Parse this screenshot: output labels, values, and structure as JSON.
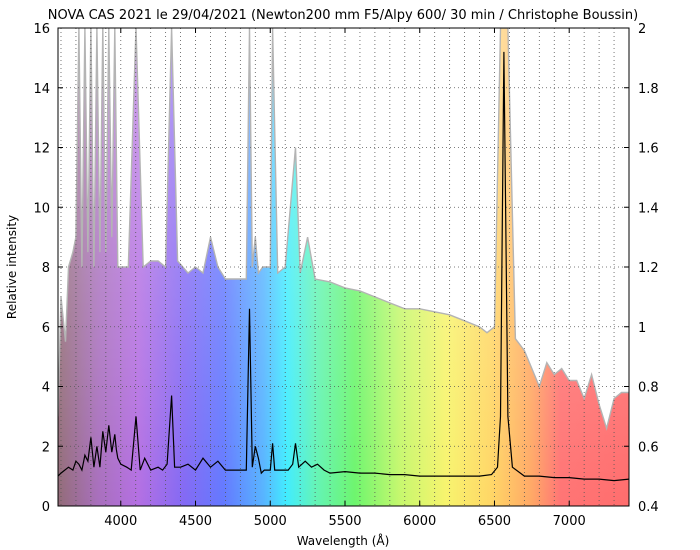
{
  "chart_data": {
    "type": "line",
    "title": "NOVA CAS 2021 le 29/04/2021 (Newton200 mm F5/Alpy 600/ 30 min / Christophe Boussin)",
    "xlabel": "Wavelength (Å)",
    "ylabel": "Relative intensity",
    "xlim": [
      3580,
      7400
    ],
    "ylim": [
      0,
      16
    ],
    "y2lim": [
      0.4,
      2.0
    ],
    "x_ticks": [
      4000,
      4500,
      5000,
      5500,
      6000,
      6500,
      7000
    ],
    "y_ticks": [
      0,
      2,
      4,
      6,
      8,
      10,
      12,
      14,
      16
    ],
    "y2_ticks": [
      0.4,
      0.6,
      0.8,
      1,
      1.2,
      1.4,
      1.6,
      1.8,
      2
    ],
    "grid": true,
    "background": "visible spectrum rainbow",
    "series": [
      {
        "color": "#000000",
        "axis": "left",
        "style": "line",
        "x": [
          3580,
          3600,
          3650,
          3680,
          3700,
          3720,
          3740,
          3760,
          3780,
          3800,
          3820,
          3840,
          3860,
          3880,
          3900,
          3920,
          3940,
          3960,
          3970,
          3980,
          4000,
          4040,
          4070,
          4102,
          4130,
          4160,
          4200,
          4250,
          4280,
          4310,
          4340,
          4360,
          4400,
          4450,
          4500,
          4550,
          4600,
          4650,
          4700,
          4750,
          4800,
          4840,
          4861,
          4880,
          4900,
          4921,
          4940,
          4960,
          5000,
          5016,
          5030,
          5080,
          5120,
          5150,
          5169,
          5190,
          5234,
          5276,
          5316,
          5360,
          5400,
          5500,
          5600,
          5700,
          5800,
          5900,
          6000,
          6100,
          6200,
          6300,
          6400,
          6480,
          6520,
          6540,
          6563,
          6590,
          6620,
          6700,
          6800,
          6900,
          7000,
          7100,
          7200,
          7300,
          7400
        ],
        "y": [
          1.0,
          1.1,
          1.3,
          1.2,
          1.5,
          1.4,
          1.2,
          1.7,
          1.5,
          2.3,
          1.3,
          2.0,
          1.3,
          2.5,
          1.8,
          2.7,
          1.8,
          2.4,
          1.9,
          1.6,
          1.4,
          1.3,
          1.2,
          3.0,
          1.2,
          1.6,
          1.2,
          1.3,
          1.2,
          1.4,
          3.7,
          1.3,
          1.3,
          1.4,
          1.2,
          1.6,
          1.3,
          1.5,
          1.2,
          1.2,
          1.2,
          1.2,
          6.6,
          1.3,
          2.0,
          1.6,
          1.1,
          1.2,
          1.2,
          2.1,
          1.2,
          1.2,
          1.2,
          1.4,
          2.1,
          1.3,
          1.5,
          1.3,
          1.4,
          1.2,
          1.1,
          1.15,
          1.1,
          1.1,
          1.05,
          1.05,
          1.0,
          1.0,
          1.0,
          1.0,
          1.0,
          1.05,
          1.3,
          3.0,
          15.2,
          3.0,
          1.3,
          1.0,
          1.0,
          0.95,
          0.95,
          0.9,
          0.9,
          0.85,
          0.9
        ]
      },
      {
        "color": "#b4b4b4",
        "axis": "right",
        "style": "area-upper",
        "x": [
          3580,
          3600,
          3630,
          3650,
          3680,
          3700,
          3720,
          3740,
          3760,
          3780,
          3800,
          3820,
          3840,
          3860,
          3880,
          3900,
          3920,
          3940,
          3960,
          3980,
          4000,
          4050,
          4102,
          4150,
          4200,
          4250,
          4300,
          4340,
          4380,
          4450,
          4500,
          4550,
          4600,
          4650,
          4700,
          4750,
          4800,
          4840,
          4861,
          4880,
          4900,
          4921,
          4950,
          5000,
          5016,
          5050,
          5100,
          5169,
          5200,
          5250,
          5300,
          5400,
          5500,
          5600,
          5700,
          5800,
          5900,
          6000,
          6100,
          6200,
          6300,
          6400,
          6450,
          6500,
          6540,
          6563,
          6590,
          6640,
          6700,
          6800,
          6850,
          6900,
          6950,
          7000,
          7050,
          7100,
          7150,
          7200,
          7250,
          7300,
          7350,
          7400
        ],
        "y": [
          0.7,
          1.1,
          0.95,
          1.2,
          1.25,
          1.3,
          2.0,
          1.2,
          2.0,
          1.25,
          2.0,
          1.2,
          2.0,
          1.25,
          2.0,
          1.25,
          2.0,
          1.3,
          2.0,
          1.2,
          1.2,
          1.2,
          2.0,
          1.2,
          1.22,
          1.22,
          1.2,
          2.0,
          1.22,
          1.18,
          1.2,
          1.18,
          1.3,
          1.2,
          1.16,
          1.16,
          1.16,
          1.16,
          2.0,
          1.2,
          1.3,
          1.18,
          1.2,
          1.2,
          2.0,
          1.18,
          1.2,
          1.6,
          1.18,
          1.3,
          1.16,
          1.15,
          1.13,
          1.12,
          1.1,
          1.08,
          1.06,
          1.06,
          1.05,
          1.04,
          1.02,
          1.0,
          0.98,
          1.0,
          2.0,
          2.0,
          2.0,
          0.96,
          0.92,
          0.8,
          0.88,
          0.84,
          0.86,
          0.82,
          0.82,
          0.76,
          0.84,
          0.74,
          0.66,
          0.76,
          0.78,
          0.78
        ]
      }
    ]
  }
}
